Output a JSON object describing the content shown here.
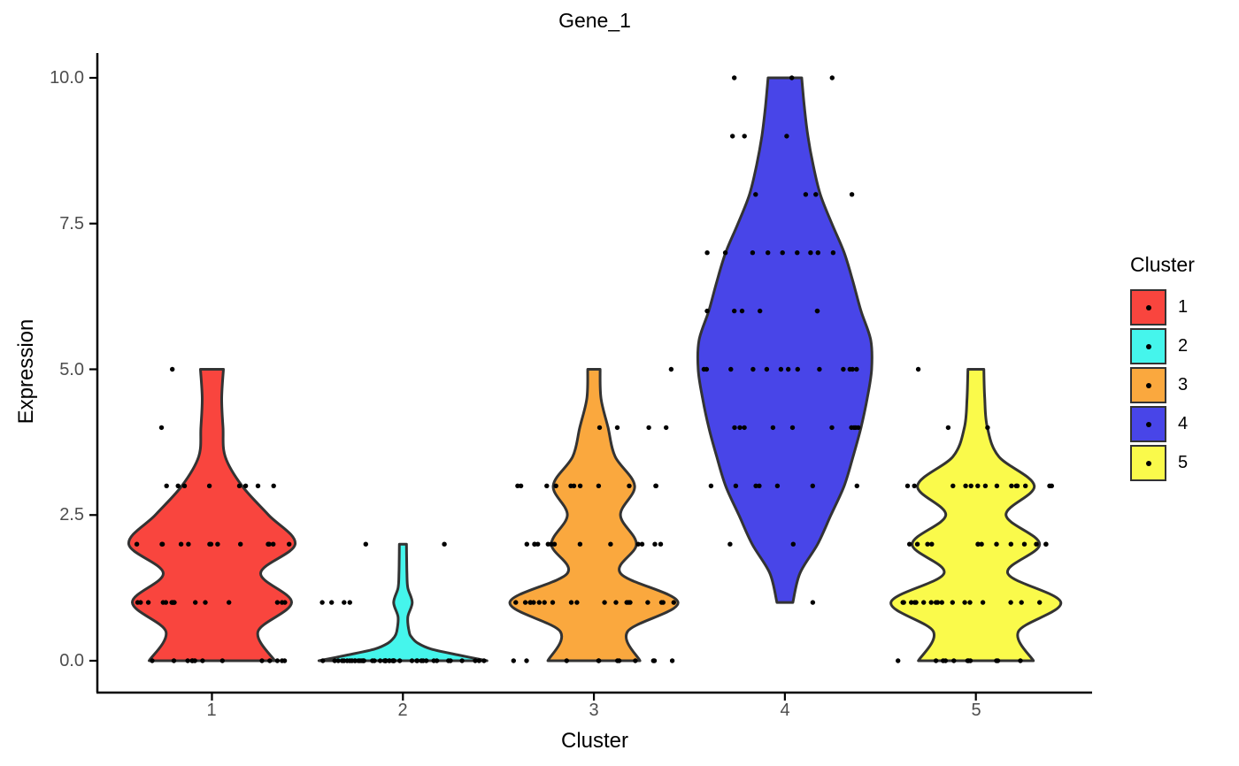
{
  "title": "Gene_1",
  "axes": {
    "x": {
      "label": "Cluster",
      "ticks": [
        "1",
        "2",
        "3",
        "4",
        "5"
      ]
    },
    "y": {
      "label": "Expression",
      "ticks": [
        {
          "label": "0.0",
          "value": 0
        },
        {
          "label": "2.5",
          "value": 2.5
        },
        {
          "label": "5.0",
          "value": 5
        },
        {
          "label": "7.5",
          "value": 7.5
        },
        {
          "label": "10.0",
          "value": 10
        }
      ]
    }
  },
  "legend": {
    "title": "Cluster",
    "entries": [
      {
        "label": "1",
        "color": "#F9453E"
      },
      {
        "label": "2",
        "color": "#45F5EC"
      },
      {
        "label": "3",
        "color": "#FAA83E"
      },
      {
        "label": "4",
        "color": "#4845E8"
      },
      {
        "label": "5",
        "color": "#FAFA4B"
      }
    ]
  },
  "style": {
    "violin_outline": "#333333",
    "point_color": "#000000",
    "axis_line_color": "#000000",
    "tick_label_color": "#4D4D4D",
    "background": "#FFFFFF"
  },
  "chart_data": {
    "type": "violin",
    "title": "Gene_1",
    "xlabel": "Cluster",
    "ylabel": "Expression",
    "ylim": [
      0,
      10
    ],
    "grid": false,
    "legend_position": "right",
    "categories": [
      "1",
      "2",
      "3",
      "4",
      "5"
    ],
    "jitter_points_on_integer_values": true,
    "series": [
      {
        "cluster": "1",
        "color": "#F9453E",
        "data_range": [
          0,
          5
        ],
        "point_counts": {
          "0": 13,
          "1": 16,
          "2": 14,
          "3": 8,
          "4": 1,
          "5": 1
        },
        "profile": [
          [
            0,
            71
          ],
          [
            0.5,
            52
          ],
          [
            1,
            90
          ],
          [
            1.5,
            55
          ],
          [
            2,
            94
          ],
          [
            2.5,
            64
          ],
          [
            3,
            34
          ],
          [
            3.5,
            15
          ],
          [
            4,
            12.5
          ],
          [
            4.5,
            11
          ],
          [
            5,
            13
          ]
        ]
      },
      {
        "cluster": "2",
        "color": "#45F5EC",
        "data_range": [
          0,
          2
        ],
        "point_counts": {
          "0": 44,
          "1": 4,
          "2": 2
        },
        "profile": [
          [
            0,
            95
          ],
          [
            0.1,
            62
          ],
          [
            0.2,
            32
          ],
          [
            0.3,
            17
          ],
          [
            0.4,
            10
          ],
          [
            0.5,
            7
          ],
          [
            0.75,
            5.5
          ],
          [
            1,
            10.5
          ],
          [
            1.25,
            5.5
          ],
          [
            1.5,
            4.5
          ],
          [
            1.75,
            4.2
          ],
          [
            2,
            4
          ]
        ]
      },
      {
        "cluster": "3",
        "color": "#FAA83E",
        "data_range": [
          0,
          5
        ],
        "point_counts": {
          "0": 11,
          "1": 19,
          "2": 13,
          "3": 11,
          "4": 4,
          "5": 1
        },
        "profile": [
          [
            0,
            52
          ],
          [
            0.5,
            38
          ],
          [
            1,
            95
          ],
          [
            1.5,
            30
          ],
          [
            2,
            48
          ],
          [
            2.5,
            30
          ],
          [
            3,
            46
          ],
          [
            3.5,
            24
          ],
          [
            4,
            16
          ],
          [
            4.5,
            8
          ],
          [
            5,
            7
          ]
        ]
      },
      {
        "cluster": "4",
        "color": "#4845E8",
        "data_range": [
          1,
          10
        ],
        "point_counts": {
          "1": 1,
          "2": 2,
          "3": 7,
          "4": 10,
          "5": 13,
          "6": 6,
          "7": 9,
          "8": 4,
          "9": 3,
          "10": 3
        },
        "profile": [
          [
            1,
            9
          ],
          [
            1.5,
            17
          ],
          [
            2,
            37
          ],
          [
            2.5,
            52
          ],
          [
            3,
            67
          ],
          [
            3.5,
            77
          ],
          [
            4,
            86
          ],
          [
            4.5,
            93
          ],
          [
            5,
            98
          ],
          [
            5.5,
            97
          ],
          [
            6,
            86
          ],
          [
            6.5,
            77
          ],
          [
            7,
            67
          ],
          [
            7.5,
            53
          ],
          [
            8,
            40
          ],
          [
            8.5,
            32
          ],
          [
            9,
            26
          ],
          [
            9.5,
            22
          ],
          [
            10,
            19
          ]
        ]
      },
      {
        "cluster": "5",
        "color": "#FAFA4B",
        "data_range": [
          0,
          5
        ],
        "point_counts": {
          "0": 11,
          "1": 17,
          "2": 13,
          "3": 14,
          "4": 2,
          "5": 1
        },
        "profile": [
          [
            0,
            65
          ],
          [
            0.5,
            48
          ],
          [
            1,
            96
          ],
          [
            1.5,
            36
          ],
          [
            2,
            72
          ],
          [
            2.5,
            34
          ],
          [
            3,
            66
          ],
          [
            3.5,
            26
          ],
          [
            4,
            13
          ],
          [
            4.5,
            10
          ],
          [
            5,
            9
          ]
        ]
      }
    ]
  }
}
